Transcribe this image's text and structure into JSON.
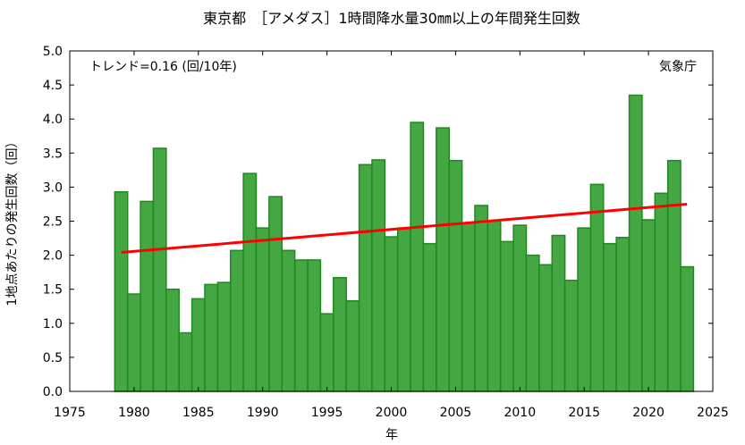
{
  "chart_data": {
    "type": "bar",
    "title": "東京都　［アメダス］1時間降水量30㎜以上の年間発生回数",
    "xlabel": "年",
    "ylabel": "1地点あたりの発生回数（回）",
    "trend_label": "トレンド=0.16 (回/10年)",
    "source_label": "気象庁",
    "xlim": [
      1975,
      2025
    ],
    "ylim": [
      0,
      5.0
    ],
    "x_ticks": [
      "1975",
      "1980",
      "1985",
      "1990",
      "1995",
      "2000",
      "2005",
      "2010",
      "2015",
      "2020",
      "2025"
    ],
    "y_ticks": [
      "0.0",
      "0.5",
      "1.0",
      "1.5",
      "2.0",
      "2.5",
      "3.0",
      "3.5",
      "4.0",
      "4.5",
      "5.0"
    ],
    "bar_color": "#44a744",
    "bar_edge_color": "#1e8a1e",
    "trend_color": "#ff0000",
    "years": [
      1979,
      1980,
      1981,
      1982,
      1983,
      1984,
      1985,
      1986,
      1987,
      1988,
      1989,
      1990,
      1991,
      1992,
      1993,
      1994,
      1995,
      1996,
      1997,
      1998,
      1999,
      2000,
      2001,
      2002,
      2003,
      2004,
      2005,
      2006,
      2007,
      2008,
      2009,
      2010,
      2011,
      2012,
      2013,
      2014,
      2015,
      2016,
      2017,
      2018,
      2019,
      2020,
      2021,
      2022,
      2023
    ],
    "values": [
      2.93,
      1.43,
      2.79,
      3.57,
      1.5,
      0.86,
      1.36,
      1.57,
      1.6,
      2.07,
      3.2,
      2.4,
      2.86,
      2.07,
      1.93,
      1.93,
      1.14,
      1.67,
      1.33,
      3.33,
      3.4,
      2.27,
      2.4,
      3.95,
      2.17,
      3.87,
      3.39,
      2.47,
      2.73,
      2.5,
      2.2,
      2.44,
      2.0,
      1.86,
      2.29,
      1.63,
      2.4,
      3.04,
      2.17,
      2.26,
      4.35,
      2.52,
      2.91,
      3.39,
      1.83
    ],
    "trend": {
      "x": [
        1979,
        2023
      ],
      "y": [
        2.04,
        2.75
      ]
    }
  }
}
